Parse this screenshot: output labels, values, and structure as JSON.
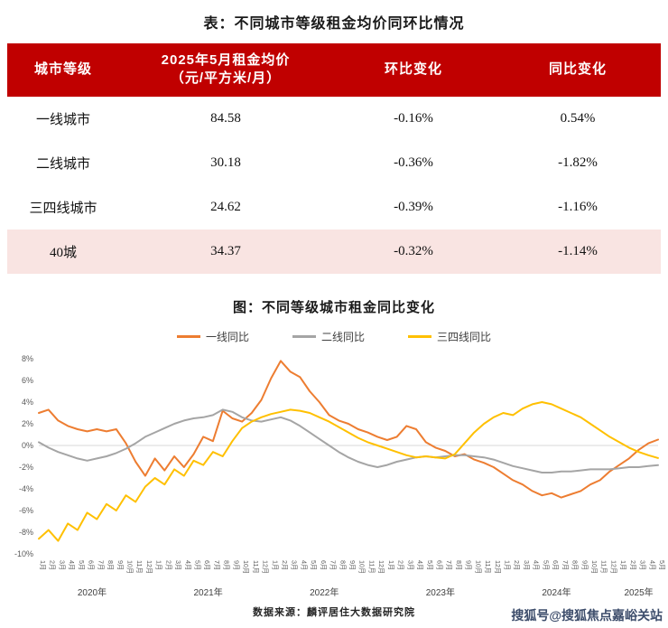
{
  "page": {
    "table_title": "表：不同城市等级租金均价同环比情况",
    "source": "数据来源：麟评居住大数据研究院",
    "watermark": "搜狐号@搜狐焦点嘉峪关站",
    "watermark_color": "#3d4d6b"
  },
  "table": {
    "header_bg": "#c00000",
    "highlight_bg": "#f9e4e2",
    "columns": {
      "tier": "城市等级",
      "price_line1": "2025年5月租金均价",
      "price_line2": "（元/平方米/月）",
      "mom": "环比变化",
      "yoy": "同比变化"
    },
    "rows": [
      {
        "tier": "一线城市",
        "price": "84.58",
        "mom": "-0.16%",
        "yoy": "0.54%",
        "highlight": false
      },
      {
        "tier": "二线城市",
        "price": "30.18",
        "mom": "-0.36%",
        "yoy": "-1.82%",
        "highlight": false
      },
      {
        "tier": "三四线城市",
        "price": "24.62",
        "mom": "-0.39%",
        "yoy": "-1.16%",
        "highlight": false
      },
      {
        "tier": "40城",
        "price": "34.37",
        "mom": "-0.32%",
        "yoy": "-1.14%",
        "highlight": true
      }
    ]
  },
  "chart_data": {
    "type": "line",
    "title": "图：不同等级城市租金同比变化",
    "ylim": [
      -10,
      8
    ],
    "y_ticks": [
      "8%",
      "6%",
      "4%",
      "2%",
      "0%",
      "-2%",
      "-4%",
      "-6%",
      "-8%",
      "-10%"
    ],
    "year_labels": [
      "2020年",
      "2021年",
      "2022年",
      "2023年",
      "2024年",
      "2025年"
    ],
    "x_months": [
      "1月",
      "2月",
      "3月",
      "4月",
      "5月",
      "6月",
      "7月",
      "8月",
      "9月",
      "10月",
      "11月",
      "12月",
      "1月",
      "2月",
      "3月",
      "4月",
      "5月",
      "6月",
      "7月",
      "8月",
      "9月",
      "10月",
      "11月",
      "12月",
      "1月",
      "2月",
      "3月",
      "4月",
      "5月",
      "6月",
      "7月",
      "8月",
      "9月",
      "10月",
      "11月",
      "12月",
      "1月",
      "2月",
      "3月",
      "4月",
      "5月",
      "6月",
      "7月",
      "8月",
      "9月",
      "10月",
      "11月",
      "12月",
      "1月",
      "2月",
      "3月",
      "4月",
      "5月",
      "6月",
      "7月",
      "8月",
      "9月",
      "10月",
      "11月",
      "12月",
      "1月",
      "2月",
      "3月",
      "4月",
      "5月"
    ],
    "series": [
      {
        "name": "一线同比",
        "color": "#ED7D31",
        "values": [
          3.0,
          3.3,
          2.3,
          1.8,
          1.5,
          1.3,
          1.5,
          1.3,
          1.5,
          0.2,
          -1.5,
          -2.8,
          -1.2,
          -2.3,
          -1.0,
          -2.0,
          -0.8,
          0.8,
          0.4,
          3.2,
          2.5,
          2.2,
          3.0,
          4.2,
          6.2,
          7.8,
          6.8,
          6.3,
          5.0,
          4.0,
          2.8,
          2.3,
          2.0,
          1.5,
          1.2,
          0.8,
          0.5,
          0.8,
          1.8,
          1.5,
          0.3,
          -0.2,
          -0.5,
          -1.0,
          -0.8,
          -1.3,
          -1.6,
          -2.0,
          -2.6,
          -3.2,
          -3.6,
          -4.2,
          -4.6,
          -4.4,
          -4.8,
          -4.5,
          -4.2,
          -3.6,
          -3.2,
          -2.4,
          -1.8,
          -1.2,
          -0.4,
          0.2,
          0.54
        ]
      },
      {
        "name": "二线同比",
        "color": "#A5A5A5",
        "values": [
          0.3,
          -0.2,
          -0.6,
          -0.9,
          -1.2,
          -1.4,
          -1.2,
          -1.0,
          -0.7,
          -0.3,
          0.2,
          0.8,
          1.2,
          1.6,
          2.0,
          2.3,
          2.5,
          2.6,
          2.8,
          3.3,
          3.1,
          2.6,
          2.3,
          2.2,
          2.4,
          2.6,
          2.3,
          1.8,
          1.2,
          0.6,
          0.0,
          -0.6,
          -1.1,
          -1.5,
          -1.8,
          -2.0,
          -1.8,
          -1.5,
          -1.3,
          -1.1,
          -1.0,
          -1.1,
          -1.0,
          -0.9,
          -0.9,
          -1.0,
          -1.1,
          -1.3,
          -1.6,
          -1.9,
          -2.1,
          -2.3,
          -2.5,
          -2.5,
          -2.4,
          -2.4,
          -2.3,
          -2.2,
          -2.2,
          -2.2,
          -2.1,
          -2.0,
          -2.0,
          -1.9,
          -1.82
        ]
      },
      {
        "name": "三四线同比",
        "color": "#FFC000",
        "values": [
          -8.6,
          -7.8,
          -8.8,
          -7.2,
          -7.8,
          -6.2,
          -6.8,
          -5.4,
          -6.0,
          -4.6,
          -5.2,
          -3.8,
          -3.0,
          -3.6,
          -2.2,
          -2.8,
          -1.4,
          -1.8,
          -0.6,
          -1.0,
          0.4,
          1.6,
          2.2,
          2.6,
          2.9,
          3.1,
          3.3,
          3.2,
          3.0,
          2.6,
          2.2,
          1.7,
          1.2,
          0.7,
          0.3,
          0.0,
          -0.3,
          -0.6,
          -0.9,
          -1.1,
          -1.0,
          -1.1,
          -1.2,
          -0.8,
          0.2,
          1.2,
          2.0,
          2.6,
          3.0,
          2.8,
          3.4,
          3.8,
          4.0,
          3.8,
          3.4,
          3.0,
          2.6,
          2.0,
          1.4,
          0.8,
          0.3,
          -0.2,
          -0.6,
          -0.9,
          -1.16
        ]
      }
    ]
  }
}
